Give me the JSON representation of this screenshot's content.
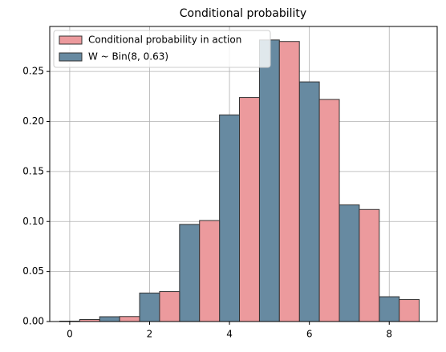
{
  "chart_data": {
    "type": "bar",
    "title": "Conditional probability",
    "categories": [
      0,
      1,
      2,
      3,
      4,
      5,
      6,
      7,
      8
    ],
    "series": [
      {
        "name": "W ~ Bin(8, 0.63)",
        "color": "#678aa1",
        "values": [
          0.0004,
          0.0048,
          0.0285,
          0.0971,
          0.2066,
          0.2815,
          0.2396,
          0.1166,
          0.0248
        ]
      },
      {
        "name": "Conditional probability in action",
        "color": "#ec9a9d",
        "values": [
          0.002,
          0.005,
          0.03,
          0.101,
          0.224,
          0.28,
          0.222,
          0.112,
          0.022
        ]
      }
    ],
    "xlim": [
      -0.5,
      9.2
    ],
    "xticks": [
      0,
      2,
      4,
      6,
      8
    ],
    "ylim": [
      0,
      0.295
    ],
    "yticks": [
      {
        "value": 0,
        "label": "0.00"
      },
      {
        "value": 0.05,
        "label": "0.05"
      },
      {
        "value": 0.1,
        "label": "0.10"
      },
      {
        "value": 0.15,
        "label": "0.15"
      },
      {
        "value": 0.2,
        "label": "0.20"
      },
      {
        "value": 0.25,
        "label": "0.25"
      }
    ],
    "grid": true,
    "legend": "upper left"
  }
}
